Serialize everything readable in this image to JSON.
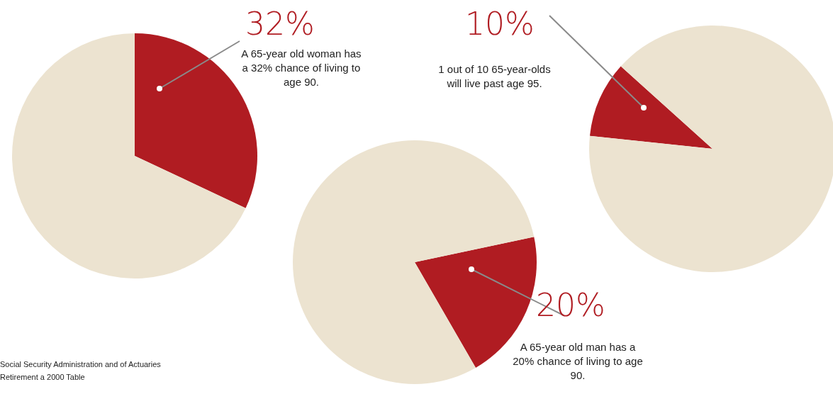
{
  "chart_data": [
    {
      "type": "pie",
      "categories": [
        null,
        null
      ],
      "values": [
        32,
        68
      ],
      "colors": [
        "#b01c22",
        "#ece3d0"
      ],
      "value_labels": [
        "32%",
        null
      ],
      "annotations": [
        "A 65-year old woman has a 32% chance of living to age 90.",
        "Social Security Administration and of Actuaries Retirement a 2000 Table"
      ]
    },
    {
      "type": "pie",
      "categories": [
        null,
        null
      ],
      "values": [
        20,
        80
      ],
      "colors": [
        "#b01c22",
        "#ece3d0"
      ],
      "value_labels": [
        "20%",
        null
      ],
      "annotations": [
        "A 65-year old man has a 20% chance of living to age 90."
      ]
    },
    {
      "type": "pie",
      "categories": [
        null,
        null
      ],
      "values": [
        10,
        90
      ],
      "colors": [
        "#b01c22",
        "#ece3d0"
      ],
      "value_labels": [
        "10%",
        null
      ],
      "annotations": [
        "1 out of 10 65-year-olds will live past age 95."
      ]
    }
  ]
}
